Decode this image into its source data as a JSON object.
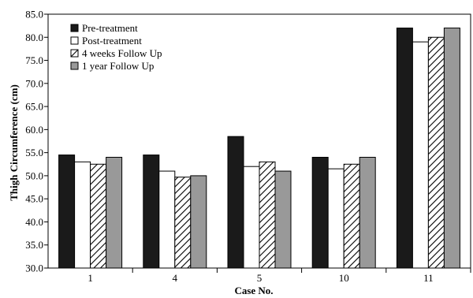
{
  "chart_data": {
    "type": "bar",
    "title": "",
    "xlabel": "Case No.",
    "ylabel": "Thigh Circumference (cm)",
    "ylim": [
      30.0,
      85.0
    ],
    "yticks": [
      "30.0",
      "35.0",
      "40.0",
      "45.0",
      "50.0",
      "55.0",
      "60.0",
      "65.0",
      "70.0",
      "75.0",
      "80.0",
      "85.0"
    ],
    "categories": [
      "1",
      "4",
      "5",
      "10",
      "11"
    ],
    "grid": false,
    "legend_position": "top-left",
    "series": [
      {
        "name": "Pre-treatment",
        "fill": "#1a1a1a",
        "pattern": "solid",
        "values": [
          54.5,
          54.5,
          58.5,
          54.0,
          82.0
        ]
      },
      {
        "name": "Post-treatment",
        "fill": "#ffffff",
        "pattern": "solid",
        "values": [
          53.0,
          51.0,
          52.0,
          51.5,
          79.0
        ]
      },
      {
        "name": "4 weeks Follow Up",
        "fill": "#ffffff",
        "pattern": "diagonal-hatch",
        "values": [
          52.5,
          49.7,
          53.0,
          52.5,
          80.0
        ]
      },
      {
        "name": "1 year Follow Up",
        "fill": "#999999",
        "pattern": "solid",
        "values": [
          54.0,
          50.0,
          51.0,
          54.0,
          82.0
        ]
      }
    ]
  }
}
